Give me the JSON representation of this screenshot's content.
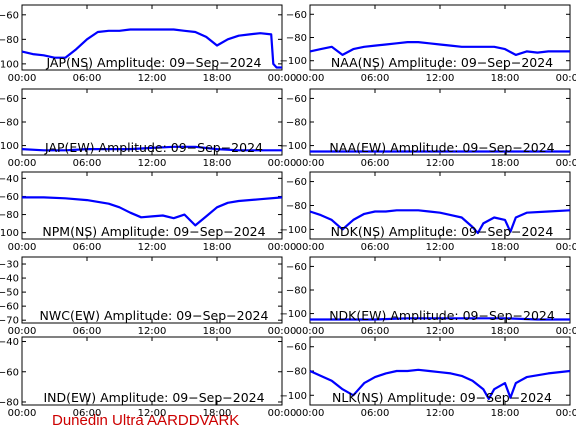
{
  "figure": {
    "credit": "Dunedin Ultra AARDDVARK",
    "x_ticks": [
      "00:00",
      "06:00",
      "12:00",
      "18:00",
      "00:00"
    ]
  },
  "chart_data": [
    {
      "type": "line",
      "title": "JAP(NS) Amplitude: 09−Sep−2024",
      "ylim": [
        -105,
        -52
      ],
      "yticks": [
        -100,
        -80,
        -60
      ],
      "xlim": [
        0,
        24
      ],
      "series": [
        {
          "color": "#0000ff",
          "x": [
            0,
            1,
            2,
            3,
            4,
            5,
            6,
            7,
            8,
            9,
            10,
            11,
            12,
            13,
            14,
            15,
            16,
            17,
            18,
            19,
            20,
            21,
            22,
            23,
            23.2,
            23.5,
            24
          ],
          "y": [
            -90,
            -92,
            -93,
            -95,
            -95,
            -88,
            -80,
            -74,
            -73,
            -73,
            -72,
            -72,
            -72,
            -72,
            -72,
            -73,
            -74,
            -78,
            -85,
            -80,
            -77,
            -76,
            -75,
            -76,
            -100,
            -103,
            -103
          ]
        }
      ]
    },
    {
      "type": "line",
      "title": "NAA(NS) Amplitude: 09−Sep−2024",
      "ylim": [
        -108,
        -52
      ],
      "yticks": [
        -100,
        -80,
        -60
      ],
      "xlim": [
        0,
        24
      ],
      "series": [
        {
          "color": "#0000ff",
          "x": [
            0,
            1,
            2,
            3,
            4,
            5,
            6,
            7,
            8,
            9,
            10,
            11,
            12,
            13,
            14,
            15,
            16,
            17,
            18,
            19,
            20,
            21,
            22,
            23,
            24
          ],
          "y": [
            -92,
            -90,
            -88,
            -95,
            -90,
            -88,
            -87,
            -86,
            -85,
            -84,
            -84,
            -85,
            -86,
            -87,
            -88,
            -88,
            -88,
            -88,
            -90,
            -95,
            -92,
            -93,
            -92,
            -92,
            -92
          ]
        }
      ]
    },
    {
      "type": "line",
      "title": "JAP(EW) Amplitude: 09−Sep−2024",
      "ylim": [
        -108,
        -52
      ],
      "yticks": [
        -100,
        -80,
        -60
      ],
      "xlim": [
        0,
        24
      ],
      "series": [
        {
          "color": "#0000ff",
          "x": [
            0,
            2,
            4,
            6,
            8,
            10,
            12,
            14,
            16,
            18,
            20,
            22,
            24
          ],
          "y": [
            -103,
            -104,
            -104,
            -103,
            -103,
            -103,
            -102,
            -101,
            -101,
            -103,
            -104,
            -104,
            -104
          ]
        }
      ]
    },
    {
      "type": "line",
      "title": "NAA(EW) Amplitude: 09−Sep−2024",
      "ylim": [
        -108,
        -52
      ],
      "yticks": [
        -100,
        -80,
        -60
      ],
      "xlim": [
        0,
        24
      ],
      "series": [
        {
          "color": "#0000ff",
          "x": [
            0,
            3,
            6,
            9,
            12,
            15,
            18,
            21,
            24
          ],
          "y": [
            -105,
            -105,
            -105,
            -105,
            -105,
            -105,
            -105,
            -105,
            -105
          ]
        }
      ]
    },
    {
      "type": "line",
      "title": "NPM(NS) Amplitude: 09−Sep−2024",
      "ylim": [
        -107,
        -33
      ],
      "yticks": [
        -100,
        -80,
        -60,
        -40
      ],
      "xlim": [
        0,
        24
      ],
      "series": [
        {
          "color": "#0000ff",
          "x": [
            0,
            2,
            4,
            6,
            8,
            9,
            10,
            11,
            12,
            13,
            14,
            15,
            16,
            17,
            18,
            19,
            20,
            22,
            24
          ],
          "y": [
            -61,
            -61,
            -62,
            -64,
            -68,
            -72,
            -78,
            -83,
            -82,
            -81,
            -84,
            -80,
            -92,
            -82,
            -72,
            -67,
            -65,
            -63,
            -61
          ]
        }
      ]
    },
    {
      "type": "line",
      "title": "NDK(NS) Amplitude: 09−Sep−2024",
      "ylim": [
        -108,
        -52
      ],
      "yticks": [
        -100,
        -80,
        -60
      ],
      "xlim": [
        0,
        24
      ],
      "series": [
        {
          "color": "#0000ff",
          "x": [
            0,
            1,
            2,
            3,
            4,
            5,
            6,
            7,
            8,
            9,
            10,
            11,
            12,
            13,
            14,
            15,
            15.5,
            16,
            17,
            18,
            18.5,
            19,
            20,
            22,
            24
          ],
          "y": [
            -85,
            -88,
            -92,
            -100,
            -92,
            -87,
            -85,
            -85,
            -84,
            -84,
            -84,
            -85,
            -86,
            -88,
            -90,
            -98,
            -103,
            -95,
            -90,
            -92,
            -102,
            -90,
            -86,
            -85,
            -84
          ]
        }
      ]
    },
    {
      "type": "line",
      "title": "NWC(EW) Amplitude: 09−Sep−2024",
      "ylim": [
        -72,
        -25
      ],
      "yticks": [
        -70,
        -60,
        -50,
        -40,
        -30
      ],
      "xlim": [
        0,
        24
      ],
      "series": [
        {
          "color": "#0000ff",
          "x": [],
          "y": []
        }
      ]
    },
    {
      "type": "line",
      "title": "NDK(EW) Amplitude: 09−Sep−2024",
      "ylim": [
        -108,
        -52
      ],
      "yticks": [
        -100,
        -80,
        -60
      ],
      "xlim": [
        0,
        24
      ],
      "series": [
        {
          "color": "#0000ff",
          "x": [
            0,
            3,
            6,
            9,
            12,
            15,
            18,
            21,
            24
          ],
          "y": [
            -105,
            -105,
            -105,
            -104,
            -104,
            -104,
            -104,
            -105,
            -105
          ]
        }
      ]
    },
    {
      "type": "line",
      "title": "IND(EW) Amplitude: 09−Sep−2024",
      "ylim": [
        -82,
        -37
      ],
      "yticks": [
        -80,
        -60,
        -40
      ],
      "xlim": [
        0,
        24
      ],
      "series": [
        {
          "color": "#0000ff",
          "x": [],
          "y": []
        }
      ]
    },
    {
      "type": "line",
      "title": "NLK(NS) Amplitude: 09−Sep−2024",
      "ylim": [
        -108,
        -52
      ],
      "yticks": [
        -100,
        -80,
        -60
      ],
      "xlim": [
        0,
        24
      ],
      "series": [
        {
          "color": "#0000ff",
          "x": [
            0,
            1,
            2,
            3,
            4,
            5,
            6,
            7,
            8,
            9,
            10,
            11,
            12,
            13,
            14,
            15,
            16,
            16.5,
            17,
            18,
            18.5,
            19,
            20,
            22,
            24
          ],
          "y": [
            -80,
            -84,
            -88,
            -95,
            -100,
            -90,
            -85,
            -82,
            -80,
            -80,
            -79,
            -80,
            -81,
            -82,
            -84,
            -88,
            -95,
            -103,
            -95,
            -90,
            -102,
            -90,
            -85,
            -82,
            -80
          ]
        }
      ]
    }
  ]
}
